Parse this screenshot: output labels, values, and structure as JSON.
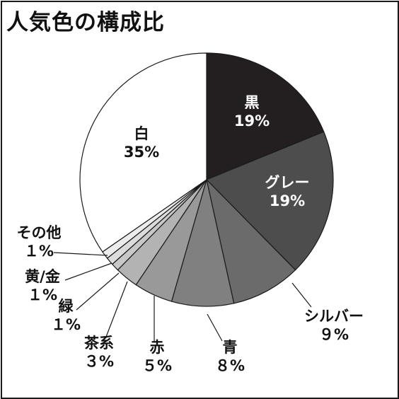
{
  "chart_data": {
    "type": "pie",
    "title": "人気色の構成比",
    "slices": [
      {
        "name": "黒",
        "value": 19,
        "pct_label": "19%",
        "color": "#231f20",
        "text_color": "#ffffff"
      },
      {
        "name": "グレー",
        "value": 19,
        "pct_label": "19%",
        "color": "#4d4d4d",
        "text_color": "#ffffff"
      },
      {
        "name": "シルバー",
        "value": 9,
        "pct_label": "９%",
        "color": "#6b6b6b",
        "text_color": "#111111"
      },
      {
        "name": "青",
        "value": 8,
        "pct_label": "８%",
        "color": "#808080",
        "text_color": "#111111"
      },
      {
        "name": "赤",
        "value": 5,
        "pct_label": "５%",
        "color": "#999999",
        "text_color": "#111111"
      },
      {
        "name": "茶系",
        "value": 3,
        "pct_label": "３%",
        "color": "#b3b3b3",
        "text_color": "#111111"
      },
      {
        "name": "緑",
        "value": 1,
        "pct_label": "１%",
        "color": "#c8c8c8",
        "text_color": "#111111"
      },
      {
        "name": "黄/金",
        "value": 1,
        "pct_label": "１%",
        "color": "#dcdcdc",
        "text_color": "#111111"
      },
      {
        "name": "その他",
        "value": 1,
        "pct_label": "１%",
        "color": "#ececec",
        "text_color": "#111111"
      },
      {
        "name": "白",
        "value": 35,
        "pct_label": "35%",
        "color": "#ffffff",
        "text_color": "#111111"
      }
    ]
  }
}
